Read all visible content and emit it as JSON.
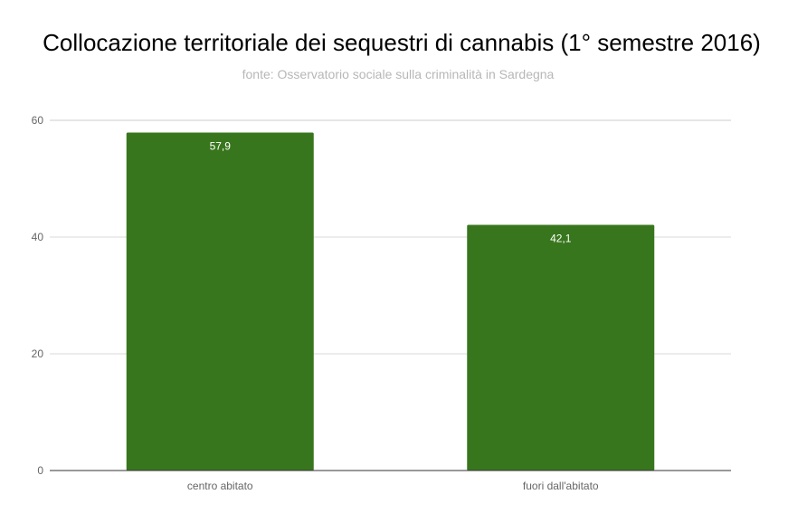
{
  "chart_data": {
    "type": "bar",
    "title": "Collocazione territoriale dei sequestri di cannabis (1° semestre  2016)",
    "subtitle": "fonte: Osservatorio sociale sulla criminalità in Sardegna",
    "categories": [
      "centro abitato",
      "fuori dall'abitato"
    ],
    "values": [
      57.9,
      42.1
    ],
    "data_labels": [
      "57,9",
      "42,1"
    ],
    "xlabel": "",
    "ylabel": "",
    "ylim": [
      0,
      60
    ],
    "yticks": [
      0,
      20,
      40,
      60
    ],
    "ytick_labels": [
      "0",
      "20",
      "40",
      "60"
    ],
    "grid": true,
    "bar_color": "#38761d"
  }
}
